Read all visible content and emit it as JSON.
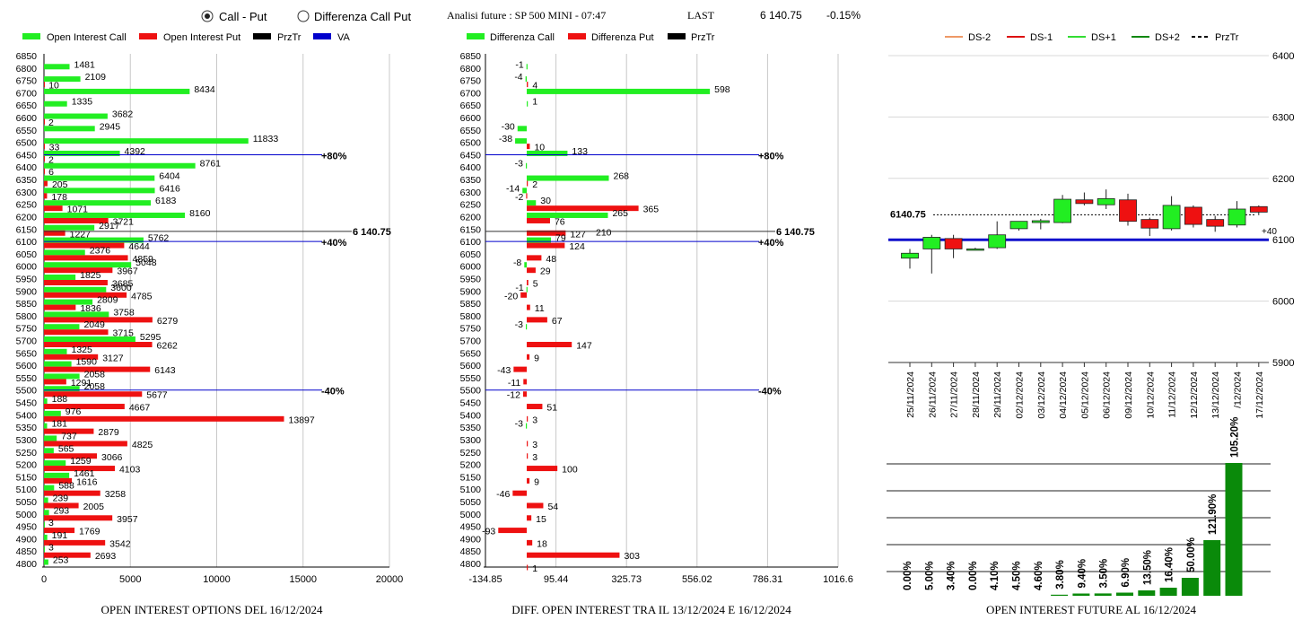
{
  "header": {
    "radio_call_put": "Call - Put",
    "radio_diff": "Differenza Call Put",
    "selected": "call_put",
    "analysis_label": "Analisi future : SP 500 MINI - 07:47",
    "last_label": "LAST",
    "last_value": "6 140.75",
    "last_change": "-0.15%"
  },
  "colors": {
    "call": "#22ee22",
    "put": "#ee1111",
    "prztr": "#000000",
    "va": "#0000cc",
    "green_dark": "#0a8a0a",
    "ds_minus2": "#ee9966",
    "ds_minus1": "#dd1111",
    "ds_plus1": "#33dd33",
    "ds_plus2": "#118811"
  },
  "chart_data": [
    {
      "type": "bar",
      "orientation": "horizontal",
      "title": "OPEN INTEREST OPTIONS DEL 16/12/2024",
      "legend": [
        "Open Interest Call",
        "Open Interest Put",
        "PrzTr",
        "VA"
      ],
      "categories": [
        6850,
        6800,
        6750,
        6700,
        6650,
        6600,
        6550,
        6500,
        6450,
        6400,
        6350,
        6300,
        6250,
        6200,
        6150,
        6100,
        6050,
        6000,
        5950,
        5900,
        5850,
        5800,
        5750,
        5700,
        5650,
        5600,
        5550,
        5500,
        5450,
        5400,
        5350,
        5300,
        5250,
        5200,
        5150,
        5100,
        5050,
        5000,
        4950,
        4900,
        4850,
        4800
      ],
      "series": [
        {
          "name": "Open Interest Call",
          "values": [
            0,
            1481,
            2109,
            8434,
            1335,
            3682,
            2945,
            11833,
            4392,
            8761,
            6404,
            6416,
            6183,
            8160,
            2917,
            5762,
            2376,
            5048,
            1825,
            3600,
            2809,
            3758,
            2049,
            5295,
            1325,
            1590,
            2058,
            2058,
            188,
            976,
            181,
            737,
            565,
            1259,
            1461,
            588,
            239,
            293,
            3,
            191,
            3,
            253
          ]
        },
        {
          "name": "Open Interest Put",
          "values": [
            0,
            0,
            10,
            0,
            0,
            2,
            0,
            33,
            2,
            6,
            205,
            178,
            1071,
            3721,
            1227,
            4644,
            4859,
            3967,
            3685,
            4785,
            1836,
            6279,
            3715,
            6262,
            3127,
            6143,
            1291,
            5677,
            4667,
            13897,
            2879,
            4825,
            3066,
            4103,
            1616,
            3258,
            2005,
            3957,
            1769,
            3542,
            2693,
            0
          ]
        }
      ],
      "price_line": {
        "value": 6140.75,
        "label": "6 140.75"
      },
      "va_lines": [
        {
          "value": 6450,
          "label": "+80%"
        },
        {
          "value": 6100,
          "label": "+40%"
        },
        {
          "value": 5500,
          "label": "-40%"
        }
      ],
      "xlim": [
        0,
        20000
      ],
      "xticks": [
        "0",
        "5000",
        "10000",
        "15000",
        "20000"
      ]
    },
    {
      "type": "bar",
      "orientation": "horizontal",
      "title": "DIFF. OPEN INTEREST TRA IL 13/12/2024 E 16/12/2024",
      "legend": [
        "Differenza Call",
        "Differenza Put",
        "PrzTr"
      ],
      "categories": [
        6850,
        6800,
        6750,
        6700,
        6650,
        6600,
        6550,
        6500,
        6450,
        6400,
        6350,
        6300,
        6250,
        6200,
        6150,
        6100,
        6050,
        6000,
        5950,
        5900,
        5850,
        5800,
        5750,
        5700,
        5650,
        5600,
        5550,
        5500,
        5450,
        5400,
        5350,
        5300,
        5250,
        5200,
        5150,
        5100,
        5050,
        5000,
        4950,
        4900,
        4850,
        4800
      ],
      "series": [
        {
          "name": "Differenza Call",
          "values": [
            0,
            -1,
            -4,
            598,
            1,
            0,
            -30,
            -38,
            133,
            -3,
            268,
            -14,
            30,
            265,
            0,
            79,
            2,
            -8,
            0,
            -1,
            0,
            0,
            -3,
            0,
            0,
            0,
            0,
            0,
            0,
            0,
            -3,
            0,
            0,
            0,
            0,
            0,
            0,
            0,
            0,
            0,
            0,
            0
          ]
        },
        {
          "name": "Differenza Put",
          "values": [
            0,
            0,
            4,
            0,
            0,
            0,
            0,
            10,
            0,
            0,
            2,
            -2,
            365,
            76,
            127,
            124,
            48,
            29,
            5,
            -20,
            11,
            67,
            0,
            147,
            9,
            -43,
            -11,
            -12,
            51,
            3,
            0,
            3,
            3,
            100,
            9,
            -46,
            54,
            15,
            -93,
            18,
            303,
            1
          ]
        }
      ],
      "labels_call": [
        "",
        "-1",
        "-4",
        "598",
        "1",
        "",
        "-30",
        "-38",
        "133",
        "-3",
        "268",
        "-14",
        "30",
        "265",
        "",
        "79",
        "",
        "-8",
        "",
        "-1",
        "",
        "",
        "-3",
        "",
        "",
        "",
        "",
        "",
        "",
        "",
        "-3",
        "",
        "",
        "",
        "",
        "",
        "",
        "",
        "",
        "",
        "",
        ""
      ],
      "labels_put": [
        "",
        "",
        "4",
        "",
        "",
        "",
        "",
        "10",
        "",
        "",
        "2",
        "-2",
        "365",
        "76",
        "127",
        "124",
        "48",
        "29",
        "5",
        "-20",
        "11",
        "67",
        "",
        "147",
        "9",
        "-43",
        "-11",
        "-12",
        "51",
        "3",
        "",
        "3",
        "3",
        "100",
        "9",
        "-46",
        "54",
        "15",
        "-93",
        "18",
        "303",
        "1"
      ],
      "price_line": {
        "value": 6140.75,
        "label": "6 140.75"
      },
      "extra_labels": [
        {
          "value": 6150,
          "label": "210"
        }
      ],
      "va_lines": [
        {
          "value": 6450,
          "label": "+80%"
        },
        {
          "value": 6100,
          "label": "+40%"
        },
        {
          "value": 5500,
          "label": "-40%"
        }
      ],
      "xlim": [
        -134.85,
        1016.6
      ],
      "xticks": [
        "-134.85",
        "95.44",
        "325.73",
        "556.02",
        "786.31",
        "1016.6"
      ]
    },
    {
      "type": "candlestick",
      "legend": [
        "DS-2",
        "DS-1",
        "DS+1",
        "DS+2",
        "PrzTr"
      ],
      "dates": [
        "25/11/2024",
        "26/11/2024",
        "27/11/2024",
        "28/11/2024",
        "29/11/2024",
        "02/12/2024",
        "03/12/2024",
        "04/12/2024",
        "05/12/2024",
        "06/12/2024",
        "09/12/2024",
        "10/12/2024",
        "11/12/2024",
        "12/12/2024",
        "13/12/2024",
        "/12/2024",
        "17/12/2024"
      ],
      "candles": [
        {
          "o": 6070,
          "h": 6085,
          "l": 6053,
          "c": 6078
        },
        {
          "o": 6085,
          "h": 6108,
          "l": 6045,
          "c": 6104
        },
        {
          "o": 6102,
          "h": 6108,
          "l": 6070,
          "c": 6085
        },
        {
          "o": 6085,
          "h": 6087,
          "l": 6083,
          "c": 6085
        },
        {
          "o": 6087,
          "h": 6130,
          "l": 6085,
          "c": 6108
        },
        {
          "o": 6118,
          "h": 6130,
          "l": 6115,
          "c": 6130
        },
        {
          "o": 6128,
          "h": 6134,
          "l": 6117,
          "c": 6131
        },
        {
          "o": 6128,
          "h": 6173,
          "l": 6127,
          "c": 6166
        },
        {
          "o": 6165,
          "h": 6177,
          "l": 6156,
          "c": 6159
        },
        {
          "o": 6157,
          "h": 6182,
          "l": 6150,
          "c": 6167
        },
        {
          "o": 6165,
          "h": 6175,
          "l": 6123,
          "c": 6130
        },
        {
          "o": 6133,
          "h": 6136,
          "l": 6106,
          "c": 6119
        },
        {
          "o": 6118,
          "h": 6171,
          "l": 6115,
          "c": 6156
        },
        {
          "o": 6153,
          "h": 6156,
          "l": 6120,
          "c": 6125
        },
        {
          "o": 6133,
          "h": 6139,
          "l": 6113,
          "c": 6122
        },
        {
          "o": 6124,
          "h": 6163,
          "l": 6120,
          "c": 6150
        },
        {
          "o": 6154,
          "h": 6156,
          "l": 6140,
          "c": 6145
        }
      ],
      "price_line": {
        "value": 6140.75,
        "label": "6140.75"
      },
      "va_line": {
        "value": 6100,
        "label": "+40"
      },
      "ylim": [
        5900,
        6400
      ],
      "yticks": [
        "6400",
        "6300",
        "6200",
        "6100",
        "6000",
        "5900"
      ]
    },
    {
      "type": "bar",
      "title": "OPEN INTEREST FUTURE AL 16/12/2024",
      "values": [
        0.0,
        5.0,
        3.4,
        0.0,
        4.1,
        4.5,
        4.6,
        3.8,
        9.4,
        3.5,
        6.9,
        13.5,
        16.4,
        50.0,
        121.9,
        105.2
      ],
      "labels": [
        "0.00%",
        "5.00%",
        "3.40%",
        "0.00%",
        "4.10%",
        "4.50%",
        "4.60%",
        "3.80%",
        "9.40%",
        "3.50%",
        "6.90%",
        "13.50%",
        "16.40%",
        "50.00%",
        "121.90%",
        "105.20%"
      ],
      "bar_heights": [
        0.0,
        0.0,
        0.0,
        0.0,
        0.0,
        0.0,
        0.0,
        1.2,
        2.5,
        2.6,
        3.5,
        6.0,
        9.0,
        20.0,
        62.0,
        148.0
      ]
    }
  ]
}
